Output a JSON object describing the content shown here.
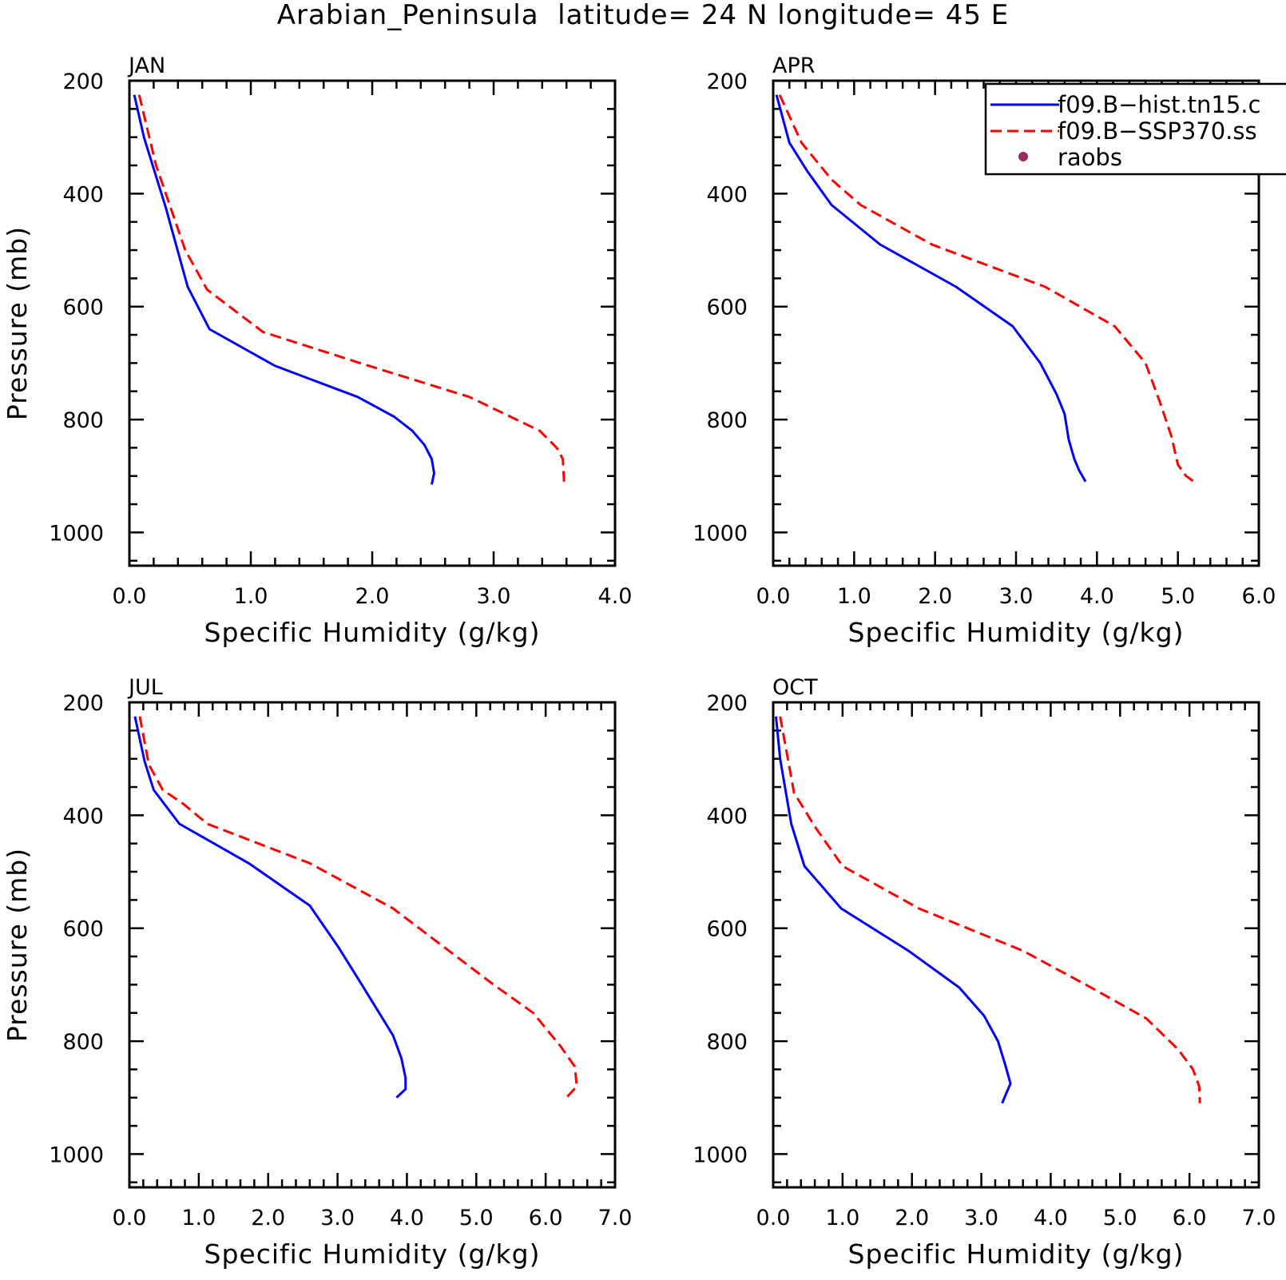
{
  "title": "Arabian_Peninsula  latitude= 24 N longitude= 45 E",
  "colors": {
    "hist": "#0000ff",
    "ssp": "#ff0000",
    "raobs": "#9b2c5c"
  },
  "legend": {
    "entries": [
      {
        "label": "f09.B−hist.tn15.c",
        "style": "solid",
        "color": "#0000ff"
      },
      {
        "label": "f09.B−SSP370.ss",
        "style": "dashed",
        "color": "#ff0000"
      },
      {
        "label": "raobs",
        "style": "marker",
        "color": "#9b2c5c"
      }
    ],
    "placement": "top-right of APR panel, clipped by page edge"
  },
  "chart_data": [
    {
      "panel": "JAN",
      "type": "line",
      "xlabel": "Specific Humidity (g/kg)",
      "ylabel": "Pressure (mb)",
      "xlim": [
        0,
        4
      ],
      "xticks": [
        "0.0",
        "1.0",
        "2.0",
        "3.0",
        "4.0"
      ],
      "ylim": [
        200,
        1000
      ],
      "yticks": [
        "200",
        "400",
        "600",
        "800",
        "1000"
      ],
      "y_inverted": true,
      "series": [
        {
          "name": "f09.B−hist.tn15.c",
          "x": [
            0.04,
            0.12,
            0.3,
            0.48,
            0.66,
            1.2,
            1.88,
            2.18,
            2.33,
            2.43,
            2.49,
            2.51,
            2.49
          ],
          "y": [
            225,
            300,
            425,
            565,
            640,
            705,
            760,
            795,
            820,
            845,
            870,
            895,
            915
          ]
        },
        {
          "name": "f09.B−SSP370.ss",
          "x": [
            0.08,
            0.22,
            0.46,
            0.64,
            1.1,
            1.9,
            2.8,
            3.38,
            3.52,
            3.57,
            3.58
          ],
          "y": [
            225,
            350,
            500,
            570,
            645,
            700,
            760,
            820,
            850,
            870,
            910
          ]
        }
      ]
    },
    {
      "panel": "APR",
      "type": "line",
      "xlabel": "Specific Humidity (g/kg)",
      "ylabel": "",
      "xlim": [
        0,
        6
      ],
      "xticks": [
        "0.0",
        "1.0",
        "2.0",
        "3.0",
        "4.0",
        "5.0",
        "6.0"
      ],
      "ylim": [
        200,
        1000
      ],
      "yticks": [
        "200",
        "400",
        "600",
        "800",
        "1000"
      ],
      "y_inverted": true,
      "series": [
        {
          "name": "f09.B−hist.tn15.c",
          "x": [
            0.04,
            0.2,
            0.42,
            0.72,
            1.32,
            2.26,
            2.96,
            3.3,
            3.5,
            3.6,
            3.65,
            3.72,
            3.78,
            3.86
          ],
          "y": [
            225,
            310,
            360,
            420,
            490,
            565,
            635,
            700,
            755,
            790,
            835,
            870,
            890,
            910
          ]
        },
        {
          "name": "f09.B−SSP370.ss",
          "x": [
            0.08,
            0.35,
            0.72,
            1.08,
            1.96,
            3.36,
            4.22,
            4.6,
            4.78,
            4.92,
            5.0,
            5.1,
            5.2
          ],
          "y": [
            225,
            310,
            375,
            420,
            490,
            565,
            635,
            700,
            770,
            830,
            880,
            900,
            910
          ]
        }
      ]
    },
    {
      "panel": "JUL",
      "type": "line",
      "xlabel": "Specific Humidity (g/kg)",
      "ylabel": "Pressure (mb)",
      "xlim": [
        0,
        7
      ],
      "xticks": [
        "0.0",
        "1.0",
        "2.0",
        "3.0",
        "4.0",
        "5.0",
        "6.0",
        "7.0"
      ],
      "ylim": [
        200,
        1000
      ],
      "yticks": [
        "200",
        "400",
        "600",
        "800",
        "1000"
      ],
      "y_inverted": true,
      "series": [
        {
          "name": "f09.B−hist.tn15.c",
          "x": [
            0.08,
            0.22,
            0.35,
            0.72,
            1.72,
            2.6,
            3.02,
            3.35,
            3.6,
            3.8,
            3.92,
            3.98,
            3.98,
            3.85
          ],
          "y": [
            225,
            305,
            355,
            415,
            485,
            560,
            635,
            700,
            750,
            790,
            830,
            865,
            885,
            900
          ]
        },
        {
          "name": "f09.B−SSP370.ss",
          "x": [
            0.15,
            0.28,
            0.48,
            0.78,
            1.12,
            2.6,
            3.8,
            5.25,
            5.82,
            6.22,
            6.42,
            6.45,
            6.3
          ],
          "y": [
            225,
            310,
            355,
            380,
            415,
            485,
            565,
            700,
            750,
            810,
            845,
            880,
            900
          ]
        }
      ]
    },
    {
      "panel": "OCT",
      "type": "line",
      "xlabel": "Specific Humidity (g/kg)",
      "ylabel": "",
      "xlim": [
        0,
        7
      ],
      "xticks": [
        "0.0",
        "1.0",
        "2.0",
        "3.0",
        "4.0",
        "5.0",
        "6.0",
        "7.0"
      ],
      "ylim": [
        200,
        1000
      ],
      "yticks": [
        "200",
        "400",
        "600",
        "800",
        "1000"
      ],
      "y_inverted": true,
      "series": [
        {
          "name": "f09.B−hist.tn15.c",
          "x": [
            0.04,
            0.1,
            0.26,
            0.45,
            0.98,
            1.95,
            2.68,
            3.04,
            3.24,
            3.34,
            3.42,
            3.35,
            3.3
          ],
          "y": [
            225,
            300,
            415,
            490,
            565,
            640,
            705,
            755,
            800,
            840,
            875,
            895,
            910
          ]
        },
        {
          "name": "f09.B−SSP370.ss",
          "x": [
            0.1,
            0.3,
            0.6,
            1.0,
            2.1,
            3.6,
            4.58,
            5.38,
            5.84,
            6.05,
            6.14,
            6.15
          ],
          "y": [
            225,
            360,
            420,
            490,
            565,
            640,
            705,
            760,
            815,
            850,
            880,
            910
          ]
        }
      ]
    }
  ]
}
